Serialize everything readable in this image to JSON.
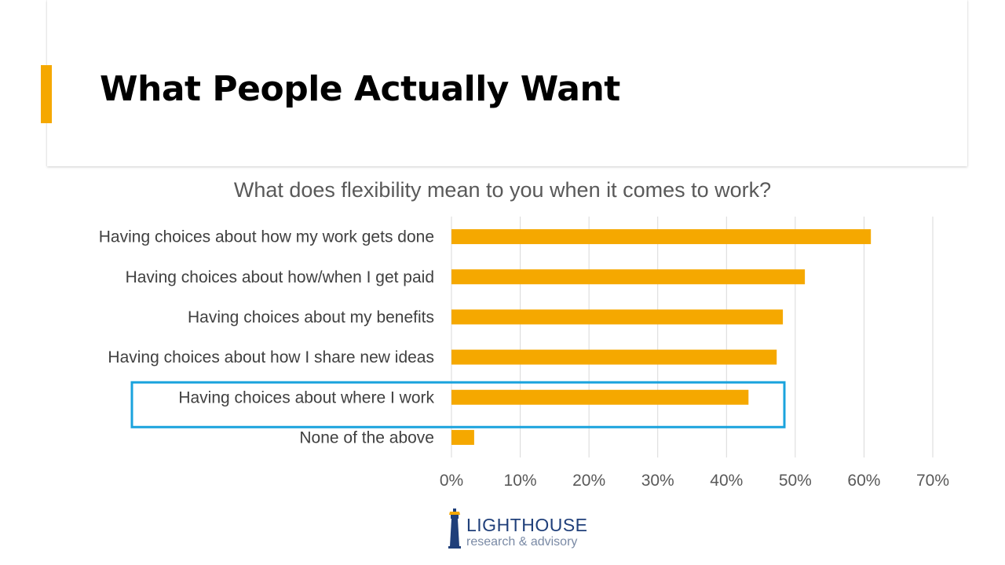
{
  "slide": {
    "title": "What People Actually Want",
    "accent_color": "#f5a800"
  },
  "chart_data": {
    "type": "bar",
    "orientation": "horizontal",
    "title": "What does flexibility mean to you when it comes to work?",
    "categories": [
      "Having choices about how my work gets done",
      "Having choices about how/when I get paid",
      "Having choices about my benefits",
      "Having choices about how I share new ideas",
      "Having choices about where I work",
      "None of the above"
    ],
    "values": [
      0.61,
      0.514,
      0.482,
      0.473,
      0.432,
      0.033
    ],
    "xlim": [
      0,
      0.7
    ],
    "ticks": [
      "0%",
      "10%",
      "20%",
      "30%",
      "40%",
      "50%",
      "60%",
      "70%"
    ],
    "grid": true,
    "bar_color": "#f5a800",
    "highlight": {
      "category": "Having choices about where I work",
      "color": "#1aa3dd"
    }
  },
  "logo": {
    "name": "LIGHTHOUSE",
    "tagline": "research & advisory",
    "color": "#1f3f7a"
  }
}
